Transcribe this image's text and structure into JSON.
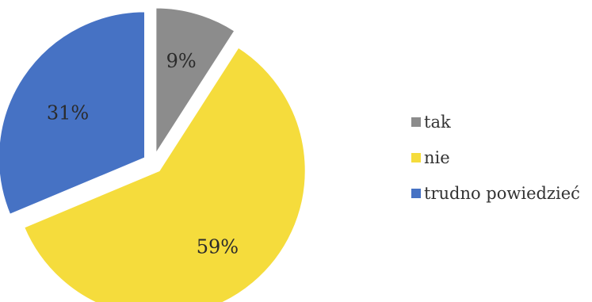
{
  "chart_data": {
    "type": "pie",
    "categories": [
      "tak",
      "nie",
      "trudno powiedzieć"
    ],
    "values": [
      9,
      59,
      31
    ],
    "labels": [
      "9%",
      "59%",
      "31%"
    ],
    "colors": [
      "#8c8c8c",
      "#f5dc3c",
      "#4672c4"
    ],
    "exploded": true,
    "legend": "right"
  },
  "legend": {
    "items": [
      {
        "label": "tak",
        "color": "#8c8c8c"
      },
      {
        "label": "nie",
        "color": "#f5dc3c"
      },
      {
        "label": "trudno powiedzieć",
        "color": "#4672c4"
      }
    ]
  }
}
